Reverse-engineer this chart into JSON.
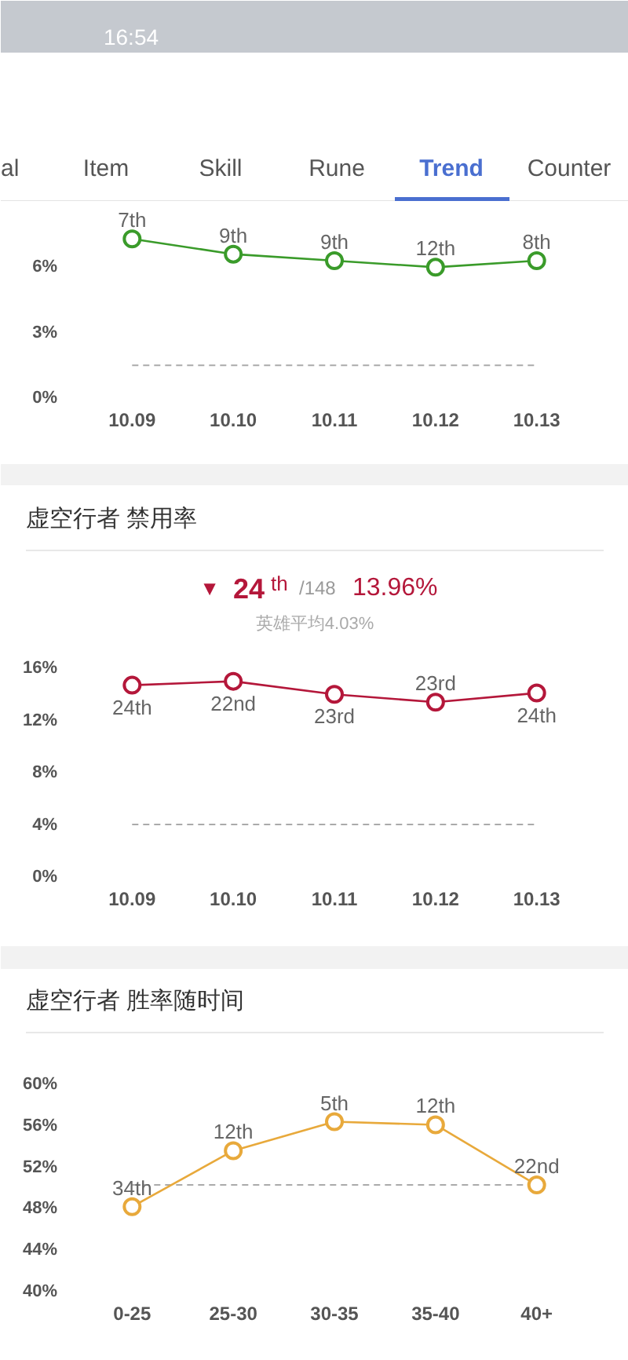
{
  "chart_data": [
    {
      "type": "line",
      "categories": [
        "10.09",
        "10.10",
        "10.11",
        "10.12",
        "10.13"
      ],
      "values": [
        7.3,
        6.6,
        6.3,
        6.0,
        6.3
      ],
      "color": "#3a9b2a",
      "marker": "circle",
      "line_style": "solid",
      "ylim": [
        0,
        9
      ],
      "yticks": [
        {
          "value": 0,
          "label": "0%"
        },
        {
          "value": 3,
          "label": "3%"
        },
        {
          "value": 6,
          "label": "6%"
        }
      ],
      "ref_lines": [
        {
          "axis": "y",
          "value": 1.5,
          "color": "#aaaaaa",
          "line_style": "dashed"
        }
      ],
      "annotations": [
        "16:54",
        "al",
        "Item",
        "Skill",
        "Rune",
        "Trend",
        "Counter",
        {
          "text": "7th",
          "x": "10.09",
          "y": 7.3
        },
        {
          "text": "9th",
          "x": "10.10",
          "y": 6.6
        },
        {
          "text": "9th",
          "x": "10.11",
          "y": 6.3
        },
        {
          "text": "12th",
          "x": "10.12",
          "y": 6.0
        },
        {
          "text": "8th",
          "x": "10.13",
          "y": 6.3
        }
      ]
    },
    {
      "type": "line",
      "title": "虚空行者 禁用率",
      "categories": [
        "10.09",
        "10.10",
        "10.11",
        "10.12",
        "10.13"
      ],
      "values": [
        14.7,
        15.0,
        14.0,
        13.4,
        14.1
      ],
      "color": "#b4173a",
      "marker": "circle",
      "line_style": "solid",
      "ylim": [
        0,
        16
      ],
      "yticks": [
        {
          "value": 0,
          "label": "0%"
        },
        {
          "value": 4,
          "label": "4%"
        },
        {
          "value": 8,
          "label": "8%"
        },
        {
          "value": 12,
          "label": "12%"
        },
        {
          "value": 16,
          "label": "16%"
        }
      ],
      "ref_lines": [
        {
          "axis": "y",
          "value": 4.03,
          "color": "#aaaaaa",
          "line_style": "dashed"
        }
      ],
      "annotations": [
        "▼",
        "24",
        "th",
        "/148",
        "13.96%",
        "英雄平均4.03%",
        {
          "text": "24th",
          "x": "10.09",
          "y": 14.7
        },
        {
          "text": "22nd",
          "x": "10.10",
          "y": 15.0
        },
        {
          "text": "23rd",
          "x": "10.11",
          "y": 14.0
        },
        {
          "text": "23rd",
          "x": "10.12",
          "y": 13.4
        },
        {
          "text": "24th",
          "x": "10.13",
          "y": 14.1
        }
      ]
    },
    {
      "type": "line",
      "title": "虚空行者 胜率随时间",
      "categories": [
        "0-25",
        "25-30",
        "30-35",
        "35-40",
        "40+"
      ],
      "values": [
        48.2,
        53.6,
        56.4,
        56.1,
        50.3
      ],
      "color": "#e8a93b",
      "marker": "circle",
      "line_style": "solid",
      "ylim": [
        40,
        60
      ],
      "yticks": [
        {
          "value": 40,
          "label": "40%"
        },
        {
          "value": 44,
          "label": "44%"
        },
        {
          "value": 48,
          "label": "48%"
        },
        {
          "value": 52,
          "label": "52%"
        },
        {
          "value": 56,
          "label": "56%"
        },
        {
          "value": 60,
          "label": "60%"
        }
      ],
      "ref_lines": [
        {
          "axis": "y",
          "value": 50.3,
          "color": "#aaaaaa",
          "line_style": "dashed"
        }
      ],
      "annotations": [
        {
          "text": "34th",
          "x": "0-25",
          "y": 48.2
        },
        {
          "text": "12th",
          "x": "25-30",
          "y": 53.6
        },
        {
          "text": "5th",
          "x": "30-35",
          "y": 56.4
        },
        {
          "text": "12th",
          "x": "35-40",
          "y": 56.1
        },
        {
          "text": "22nd",
          "x": "40+",
          "y": 50.3
        }
      ]
    }
  ]
}
